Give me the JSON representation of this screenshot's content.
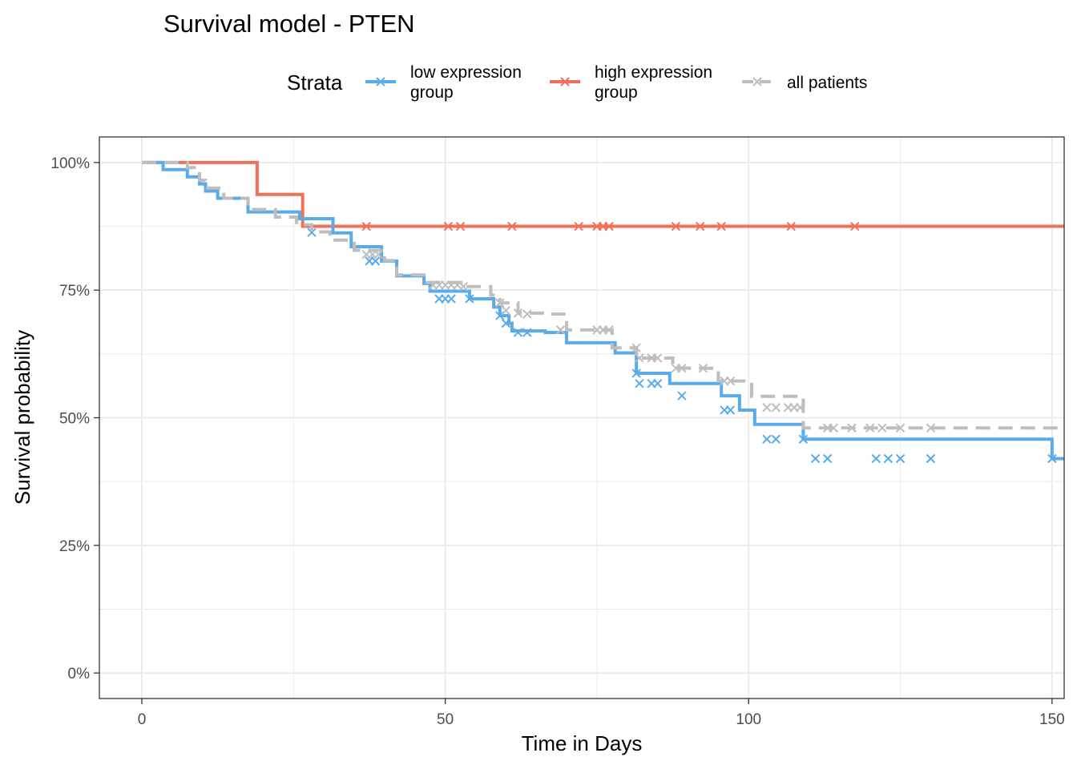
{
  "chart_data": {
    "type": "line",
    "title": "Survival model - PTEN",
    "xlabel": "Time in Days",
    "ylabel": "Survival probability",
    "xlim": [
      -7,
      152
    ],
    "ylim": [
      -0.05,
      1.05
    ],
    "x_ticks": [
      0,
      50,
      100,
      150
    ],
    "x_tick_labels": [
      "0",
      "50",
      "100",
      "150"
    ],
    "y_ticks": [
      0,
      0.25,
      0.5,
      0.75,
      1.0
    ],
    "y_tick_labels": [
      "0%",
      "25%",
      "50%",
      "75%",
      "100%"
    ],
    "grid": true,
    "legend": {
      "title": "Strata",
      "placement": "top",
      "entries": [
        "low expression group",
        "high expression group",
        "all patients"
      ]
    },
    "series": [
      {
        "name": "low expression group",
        "color": "#5aabea",
        "dashed": false,
        "x": [
          0,
          3.5,
          7.5,
          9.5,
          10.5,
          12.5,
          17.5,
          26,
          31.5,
          34.5,
          39.5,
          42,
          46.5,
          47.5,
          54,
          58,
          59,
          60.5,
          61,
          66.5,
          70,
          78,
          81.5,
          87,
          95.5,
          98.5,
          101,
          109,
          150
        ],
        "y": [
          1.0,
          0.986,
          0.972,
          0.958,
          0.944,
          0.93,
          0.903,
          0.89,
          0.862,
          0.835,
          0.807,
          0.778,
          0.763,
          0.748,
          0.733,
          0.717,
          0.7,
          0.685,
          0.67,
          0.667,
          0.647,
          0.627,
          0.587,
          0.567,
          0.543,
          0.515,
          0.487,
          0.458,
          0.42
        ],
        "censor_x": [
          28,
          37.5,
          38.5,
          49,
          50,
          51,
          54,
          59,
          60,
          62,
          63.5,
          81.5,
          82,
          84,
          85,
          89,
          96,
          97,
          103,
          104.5,
          109,
          111,
          113,
          121,
          123,
          125,
          130,
          150
        ],
        "censor_y": [
          0.863,
          0.807,
          0.807,
          0.733,
          0.733,
          0.733,
          0.733,
          0.7,
          0.685,
          0.667,
          0.667,
          0.587,
          0.567,
          0.567,
          0.567,
          0.543,
          0.515,
          0.515,
          0.458,
          0.458,
          0.458,
          0.42,
          0.42,
          0.42,
          0.42,
          0.42,
          0.42,
          0.42
        ]
      },
      {
        "name": "high expression group",
        "color": "#f07058",
        "dashed": false,
        "x": [
          0,
          19,
          26.5,
          117.5
        ],
        "y": [
          1.0,
          0.9375,
          0.875,
          0.875
        ],
        "censor_x": [
          37,
          50.5,
          52.5,
          61,
          72,
          75,
          76,
          77,
          88,
          92,
          95.5,
          107,
          117.5
        ],
        "censor_y": [
          0.875,
          0.875,
          0.875,
          0.875,
          0.875,
          0.875,
          0.875,
          0.875,
          0.875,
          0.875,
          0.875,
          0.875,
          0.875
        ]
      },
      {
        "name": "all patients",
        "color": "#bebebe",
        "dashed": true,
        "x": [
          0,
          7.5,
          9.5,
          10.5,
          13.5,
          17.5,
          22,
          25.5,
          28,
          31,
          35,
          40,
          42,
          47,
          53,
          57.5,
          59,
          62,
          66.5,
          70,
          77.5,
          81.5,
          87.5,
          92.5,
          95,
          100.5,
          109,
          150
        ],
        "y": [
          1.0,
          0.99,
          0.965,
          0.95,
          0.93,
          0.908,
          0.893,
          0.878,
          0.864,
          0.848,
          0.828,
          0.808,
          0.78,
          0.765,
          0.757,
          0.74,
          0.725,
          0.705,
          0.703,
          0.672,
          0.637,
          0.617,
          0.597,
          0.597,
          0.572,
          0.542,
          0.48,
          0.48
        ],
        "censor_x": [
          37,
          38,
          39,
          48,
          49,
          50,
          51,
          52,
          53,
          59,
          60,
          62,
          63.5,
          69,
          75,
          76,
          77,
          81.5,
          82,
          84,
          85,
          88,
          89,
          92.5,
          96,
          97,
          103,
          104.5,
          106.5,
          107.5,
          108.5,
          113,
          114,
          117,
          120,
          122,
          125,
          130
        ],
        "censor_y": [
          0.82,
          0.82,
          0.82,
          0.76,
          0.76,
          0.76,
          0.76,
          0.76,
          0.757,
          0.725,
          0.71,
          0.705,
          0.703,
          0.672,
          0.672,
          0.672,
          0.672,
          0.637,
          0.617,
          0.617,
          0.617,
          0.597,
          0.597,
          0.597,
          0.572,
          0.572,
          0.52,
          0.52,
          0.52,
          0.52,
          0.52,
          0.48,
          0.48,
          0.48,
          0.48,
          0.48,
          0.48,
          0.48
        ]
      }
    ]
  }
}
